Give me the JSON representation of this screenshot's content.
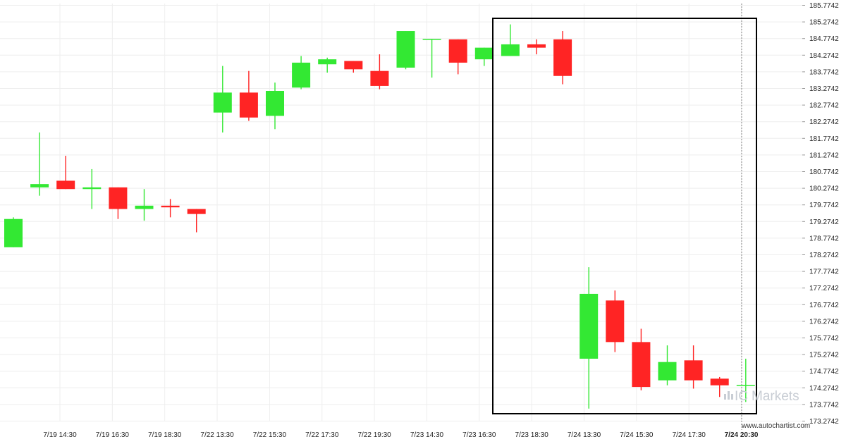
{
  "chart_data": {
    "type": "candlestick",
    "y_ticks": [
      "185.7742",
      "185.2742",
      "184.7742",
      "184.2742",
      "183.7742",
      "183.2742",
      "182.7742",
      "182.2742",
      "181.7742",
      "181.2742",
      "180.7742",
      "180.2742",
      "179.7742",
      "179.2742",
      "178.7742",
      "178.2742",
      "177.7742",
      "177.2742",
      "176.7742",
      "176.2742",
      "175.7742",
      "175.2742",
      "174.7742",
      "174.2742",
      "173.7742",
      "173.2742"
    ],
    "ylim": [
      173.2742,
      185.7742
    ],
    "x_tick_labels": [
      "7/19 14:30",
      "7/19 16:30",
      "7/19 18:30",
      "7/22 13:30",
      "7/22 15:30",
      "7/22 17:30",
      "7/22 19:30",
      "7/23 14:30",
      "7/23 16:30",
      "7/23 18:30",
      "7/24 13:30",
      "7/24 15:30",
      "7/24 17:30",
      "7/24 20:30"
    ],
    "last_label_index": 13,
    "candles": [
      {
        "o": 178.5,
        "h": 179.4,
        "l": 178.5,
        "c": 179.35
      },
      {
        "o": 180.3,
        "h": 181.95,
        "l": 180.05,
        "c": 180.4
      },
      {
        "o": 180.5,
        "h": 181.25,
        "l": 180.25,
        "c": 180.25
      },
      {
        "o": 180.25,
        "h": 180.85,
        "l": 179.65,
        "c": 180.3
      },
      {
        "o": 180.3,
        "h": 180.3,
        "l": 179.35,
        "c": 179.65
      },
      {
        "o": 179.65,
        "h": 180.25,
        "l": 179.3,
        "c": 179.75
      },
      {
        "o": 179.75,
        "h": 179.95,
        "l": 179.4,
        "c": 179.7
      },
      {
        "o": 179.65,
        "h": 179.65,
        "l": 178.95,
        "c": 179.5
      },
      {
        "o": 182.55,
        "h": 183.95,
        "l": 181.95,
        "c": 183.15
      },
      {
        "o": 183.15,
        "h": 183.8,
        "l": 182.3,
        "c": 182.4
      },
      {
        "o": 182.45,
        "h": 183.45,
        "l": 182.05,
        "c": 183.2
      },
      {
        "o": 183.3,
        "h": 184.25,
        "l": 183.25,
        "c": 184.05
      },
      {
        "o": 184.0,
        "h": 184.2,
        "l": 183.75,
        "c": 184.15
      },
      {
        "o": 184.1,
        "h": 184.1,
        "l": 183.75,
        "c": 183.85
      },
      {
        "o": 183.8,
        "h": 184.3,
        "l": 183.25,
        "c": 183.35
      },
      {
        "o": 183.9,
        "h": 185.0,
        "l": 183.85,
        "c": 185.0
      },
      {
        "o": 184.75,
        "h": 184.75,
        "l": 183.6,
        "c": 184.75
      },
      {
        "o": 184.75,
        "h": 184.75,
        "l": 183.7,
        "c": 184.05
      },
      {
        "o": 184.15,
        "h": 184.5,
        "l": 183.95,
        "c": 184.5
      },
      {
        "o": 184.25,
        "h": 185.2,
        "l": 184.25,
        "c": 184.6
      },
      {
        "o": 184.6,
        "h": 184.75,
        "l": 184.3,
        "c": 184.5
      },
      {
        "o": 184.75,
        "h": 185.0,
        "l": 183.4,
        "c": 183.65
      },
      {
        "o": 175.15,
        "h": 177.9,
        "l": 173.65,
        "c": 177.1
      },
      {
        "o": 176.9,
        "h": 177.2,
        "l": 175.35,
        "c": 175.65
      },
      {
        "o": 175.65,
        "h": 176.05,
        "l": 174.2,
        "c": 174.3
      },
      {
        "o": 174.5,
        "h": 175.55,
        "l": 174.35,
        "c": 175.05
      },
      {
        "o": 175.1,
        "h": 175.55,
        "l": 174.25,
        "c": 174.5
      },
      {
        "o": 174.55,
        "h": 174.6,
        "l": 174.0,
        "c": 174.35
      },
      {
        "o": 174.35,
        "h": 175.15,
        "l": 173.85,
        "c": 174.35
      }
    ],
    "colors": {
      "up": "#33e833",
      "down": "#ff2424",
      "grid": "#eeeeee",
      "box": "#000000"
    },
    "grid": true
  },
  "watermark": {
    "brand": "IC",
    "name": "Markets"
  },
  "source_text": "www.autochartist.com"
}
